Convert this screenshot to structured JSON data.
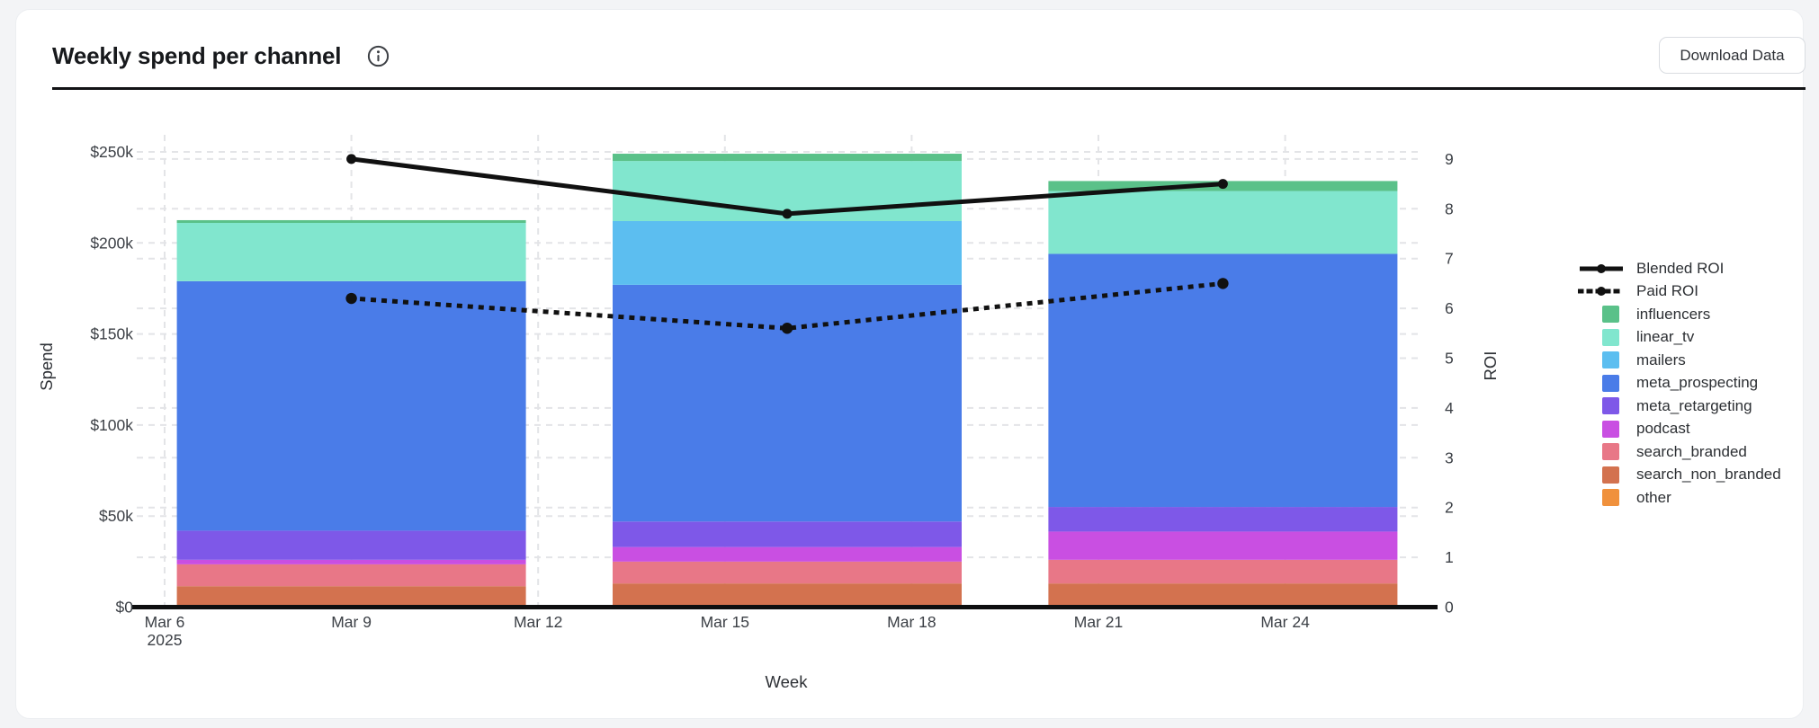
{
  "header": {
    "title": "Weekly spend per channel",
    "info_icon": "info-circle",
    "download_button_label": "Download Data"
  },
  "chart_data": {
    "type": "bar",
    "variant": "stacked-bars-with-dual-axis-roi-lines",
    "title": "Weekly spend per channel",
    "xlabel": "Week",
    "ylabel_left": "Spend",
    "ylabel_right": "ROI",
    "grid": true,
    "legend_position": "right",
    "bar_center_days": [
      3,
      10,
      17
    ],
    "x_ticks": [
      {
        "label": "Mar 6",
        "sublabel": "2025",
        "day": 0
      },
      {
        "label": "Mar 9",
        "day": 3
      },
      {
        "label": "Mar 12",
        "day": 6
      },
      {
        "label": "Mar 15",
        "day": 9
      },
      {
        "label": "Mar 18",
        "day": 12
      },
      {
        "label": "Mar 21",
        "day": 15
      },
      {
        "label": "Mar 24",
        "day": 18
      }
    ],
    "left_axis": {
      "range_k": [
        0,
        250
      ],
      "ticks": [
        {
          "label": "$0",
          "value_k": 0
        },
        {
          "label": "$50k",
          "value_k": 50
        },
        {
          "label": "$100k",
          "value_k": 100
        },
        {
          "label": "$150k",
          "value_k": 150
        },
        {
          "label": "$200k",
          "value_k": 200
        },
        {
          "label": "$250k",
          "value_k": 250
        }
      ]
    },
    "right_axis": {
      "range": [
        0,
        9.5
      ],
      "ticks": [
        {
          "label": "0",
          "value": 0
        },
        {
          "label": "1",
          "value": 1
        },
        {
          "label": "2",
          "value": 2
        },
        {
          "label": "3",
          "value": 3
        },
        {
          "label": "4",
          "value": 4
        },
        {
          "label": "5",
          "value": 5
        },
        {
          "label": "6",
          "value": 6
        },
        {
          "label": "7",
          "value": 7
        },
        {
          "label": "8",
          "value": 8
        },
        {
          "label": "9",
          "value": 9
        }
      ]
    },
    "series": [
      {
        "name": "influencers",
        "color": "#5ac189",
        "values_k": [
          1.5,
          4,
          5.5
        ]
      },
      {
        "name": "linear_tv",
        "color": "#81e6ce",
        "values_k": [
          32,
          33,
          34.5
        ]
      },
      {
        "name": "mailers",
        "color": "#5cbef0",
        "values_k": [
          0,
          35,
          0
        ]
      },
      {
        "name": "meta_prospecting",
        "color": "#4a7ce8",
        "values_k": [
          137,
          130,
          139
        ]
      },
      {
        "name": "meta_retargeting",
        "color": "#7e58e8",
        "values_k": [
          16,
          14,
          13.5
        ]
      },
      {
        "name": "podcast",
        "color": "#c94fe2",
        "values_k": [
          2.5,
          8,
          15.5
        ]
      },
      {
        "name": "search_branded",
        "color": "#e87787",
        "values_k": [
          12,
          12,
          13
        ]
      },
      {
        "name": "search_non_branded",
        "color": "#d3724f",
        "values_k": [
          11.5,
          13,
          13
        ]
      },
      {
        "name": "other",
        "color": "#f0913c",
        "values_k": [
          0,
          0,
          0
        ]
      }
    ],
    "line_series": [
      {
        "name": "Blended ROI",
        "style": "solid",
        "color": "#111111",
        "values": [
          9.0,
          7.9,
          8.5
        ]
      },
      {
        "name": "Paid ROI",
        "style": "dotted",
        "color": "#111111",
        "values": [
          6.2,
          5.6,
          6.5
        ]
      }
    ]
  }
}
